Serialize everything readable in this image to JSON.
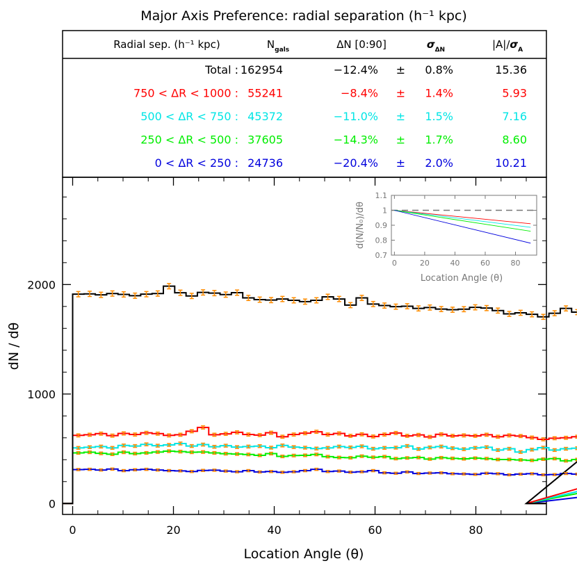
{
  "chart_data": [
    {
      "type": "table",
      "title": "Major Axis Preference: radial separation (h⁻¹ kpc)",
      "columns": [
        "Radial sep. (h⁻¹ kpc)",
        "N",
        "gals",
        "ΔN [0:90]",
        "σ",
        "ΔN",
        "|A|/",
        "σ",
        "A"
      ],
      "rows": [
        {
          "label": "Total :",
          "n": "162954",
          "dn": "−12.4%",
          "pm": "±",
          "sig": "0.8%",
          "a": "15.36",
          "color": "#000000"
        },
        {
          "label": "750 < ΔR < 1000 :",
          "n": "55241",
          "dn": "−8.4%",
          "pm": "±",
          "sig": "1.4%",
          "a": "5.93",
          "color": "#ff0000"
        },
        {
          "label": "500 < ΔR < 750 :",
          "n": "45372",
          "dn": "−11.0%",
          "pm": "±",
          "sig": "1.5%",
          "a": "7.16",
          "color": "#00e5e5"
        },
        {
          "label": "250 < ΔR < 500 :",
          "n": "37605",
          "dn": "−14.3%",
          "pm": "±",
          "sig": "1.7%",
          "a": "8.60",
          "color": "#00ee00"
        },
        {
          "label": "0 < ΔR < 250 :",
          "n": "24736",
          "dn": "−20.4%",
          "pm": "±",
          "sig": "2.0%",
          "a": "10.21",
          "color": "#0000dd"
        }
      ]
    },
    {
      "type": "line",
      "xlabel": "Location Angle (θ)",
      "ylabel": "dN / dθ",
      "xlim": [
        -2,
        94
      ],
      "ylim": [
        -100,
        2980
      ],
      "xticks": [
        0,
        20,
        40,
        60,
        80
      ],
      "yticks": [
        0,
        1000,
        2000
      ],
      "bin_width": 2.25,
      "errorbar_color": "#ff8c00",
      "series": [
        {
          "color": "#000000",
          "values": [
            1912,
            1915,
            1906,
            1918,
            1910,
            1898,
            1912,
            1918,
            1985,
            1925,
            1896,
            1928,
            1922,
            1908,
            1926,
            1878,
            1862,
            1858,
            1868,
            1856,
            1844,
            1856,
            1888,
            1868,
            1812,
            1878,
            1822,
            1808,
            1798,
            1802,
            1782,
            1790,
            1776,
            1770,
            1775,
            1792,
            1785,
            1762,
            1732,
            1742,
            1728,
            1705,
            1738,
            1782,
            1748,
            1752,
            1762,
            1745,
            1768,
            1728,
            1744,
            1752,
            1738,
            1726,
            1744,
            1720,
            1736,
            1728,
            1742,
            1702
          ]
        },
        {
          "color": "#ff0000",
          "values": [
            622,
            628,
            638,
            620,
            640,
            630,
            645,
            638,
            622,
            628,
            660,
            695,
            628,
            636,
            650,
            630,
            625,
            646,
            610,
            630,
            642,
            655,
            630,
            640,
            618,
            632,
            612,
            630,
            644,
            618,
            626,
            608,
            632,
            618,
            622,
            618,
            628,
            610,
            622,
            616,
            602,
            586,
            596,
            600,
            610,
            580,
            612,
            625,
            614,
            588,
            604,
            616,
            610,
            592,
            618,
            600,
            588,
            602,
            580,
            596
          ]
        },
        {
          "color": "#00e5e5",
          "values": [
            508,
            514,
            520,
            508,
            530,
            525,
            540,
            528,
            535,
            548,
            525,
            538,
            518,
            528,
            515,
            520,
            524,
            510,
            530,
            515,
            510,
            502,
            508,
            520,
            512,
            522,
            500,
            508,
            510,
            525,
            498,
            512,
            520,
            505,
            496,
            508,
            514,
            488,
            500,
            470,
            492,
            510,
            488,
            500,
            505,
            492,
            486,
            512,
            494,
            480,
            490,
            500,
            488,
            496,
            510,
            495,
            486,
            500,
            492,
            484
          ]
        },
        {
          "color": "#00ee00",
          "values": [
            462,
            468,
            458,
            450,
            468,
            456,
            462,
            470,
            478,
            474,
            468,
            470,
            462,
            455,
            452,
            448,
            440,
            456,
            430,
            438,
            440,
            448,
            428,
            420,
            418,
            432,
            422,
            428,
            410,
            416,
            420,
            406,
            418,
            412,
            408,
            414,
            410,
            402,
            402,
            398,
            394,
            405,
            410,
            390,
            402,
            400,
            412,
            395,
            398,
            405,
            400,
            406,
            394,
            380,
            372,
            388,
            406,
            400,
            392,
            404
          ]
        },
        {
          "color": "#0000dd",
          "values": [
            310,
            312,
            306,
            314,
            300,
            308,
            312,
            306,
            300,
            298,
            292,
            302,
            304,
            296,
            290,
            300,
            288,
            292,
            285,
            290,
            300,
            312,
            292,
            296,
            286,
            290,
            300,
            280,
            276,
            288,
            274,
            278,
            280,
            272,
            270,
            266,
            276,
            272,
            262,
            268,
            272,
            262,
            264,
            274,
            268,
            270,
            272,
            266,
            268,
            262,
            270,
            266,
            268,
            262,
            266,
            264,
            258,
            262,
            248,
            244
          ]
        }
      ]
    },
    {
      "type": "line",
      "xlabel": "Location Angle (θ)",
      "ylabel": "d(N/N₀)/dθ",
      "xlim": [
        -2,
        94
      ],
      "ylim": [
        0.7,
        1.1
      ],
      "xticks": [
        0,
        20,
        40,
        60,
        80
      ],
      "yticks": [
        0.7,
        0.8,
        0.9,
        1,
        1.1
      ],
      "reference_line": 1,
      "series": [
        {
          "color": "#ff0000",
          "x": [
            0,
            90
          ],
          "y": [
            1,
            0.91
          ]
        },
        {
          "color": "#00e5e5",
          "x": [
            0,
            90
          ],
          "y": [
            1,
            0.886
          ]
        },
        {
          "color": "#00ee00",
          "x": [
            0,
            90
          ],
          "y": [
            1,
            0.86
          ]
        },
        {
          "color": "#0000dd",
          "x": [
            0,
            90
          ],
          "y": [
            1,
            0.78
          ]
        }
      ]
    }
  ]
}
